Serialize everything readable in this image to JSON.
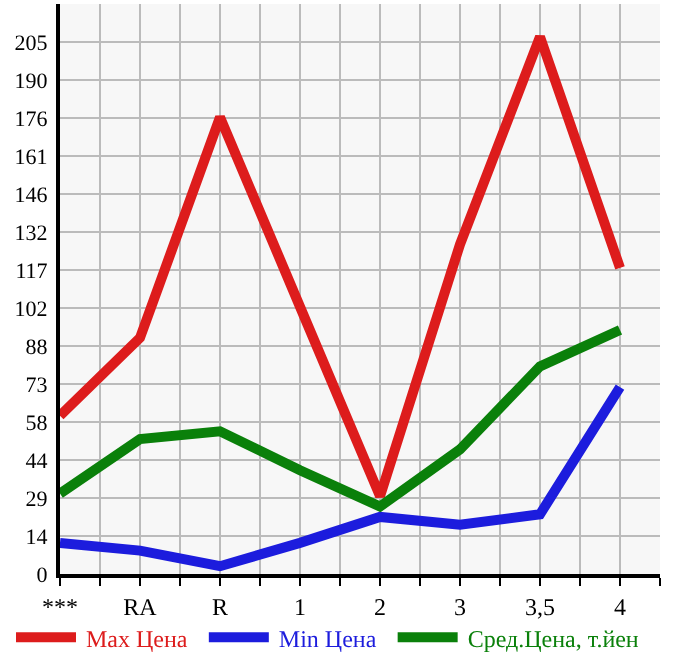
{
  "chart_data": {
    "type": "line",
    "categories": [
      "***",
      "RA",
      "R",
      "1",
      "2",
      "3",
      "3,5",
      "4"
    ],
    "series": [
      {
        "name": "Max Цена",
        "color": "#dd1c1c",
        "values": [
          61,
          91,
          176,
          103,
          30,
          127,
          207,
          118
        ]
      },
      {
        "name": "Min Цена",
        "color": "#1c1cdd",
        "values": [
          12,
          9,
          3,
          12,
          22,
          19,
          23,
          72
        ]
      },
      {
        "name": "Сред.Цена, т.йен",
        "color": "#0a800a",
        "values": [
          31,
          52,
          55,
          40,
          26,
          48,
          80,
          94
        ]
      }
    ],
    "ylim": [
      0,
      219.64
    ],
    "yticks": [
      0,
      {
        "value": 14.49,
        "label": "14"
      },
      {
        "value": 29.29,
        "label": "29"
      },
      {
        "value": 43.93,
        "label": "44"
      },
      {
        "value": 58.49,
        "label": "58"
      },
      {
        "value": 73.21,
        "label": "73"
      },
      {
        "value": 87.86,
        "label": "88"
      },
      {
        "value": 102.5,
        "label": "102"
      },
      {
        "value": 117.14,
        "label": "117"
      },
      {
        "value": 131.79,
        "label": "132"
      },
      {
        "value": 146.43,
        "label": "146"
      },
      {
        "value": 161.07,
        "label": "161"
      },
      {
        "value": 175.71,
        "label": "176"
      },
      {
        "value": 190.36,
        "label": "190"
      },
      205
    ],
    "grid": true,
    "legend": "bottom",
    "marker": "none",
    "line_style": "solid"
  }
}
